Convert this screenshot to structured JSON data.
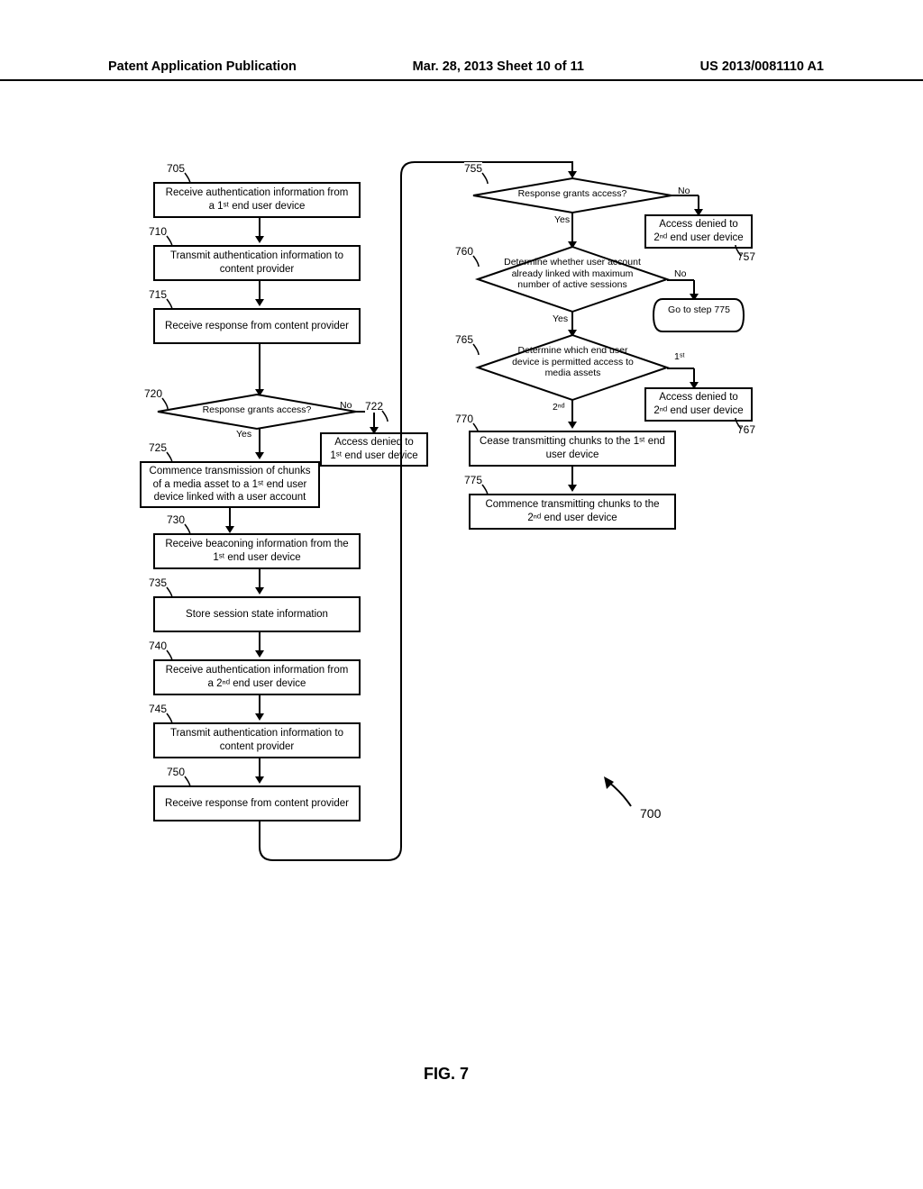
{
  "header": {
    "left": "Patent Application Publication",
    "center": "Mar. 28, 2013  Sheet 10 of 11",
    "right": "US 2013/0081110 A1"
  },
  "figure": {
    "label": "FIG. 7",
    "ref": "700"
  },
  "boxes": {
    "b705": "Receive authentication information from a 1ˢᵗ end user device",
    "b710": "Transmit authentication information to content provider",
    "b715": "Receive response from content provider",
    "b722": "Access denied to 1ˢᵗ end user device",
    "b725": "Commence transmission of chunks of a media asset to a 1ˢᵗ end user device linked with a user account",
    "b730": "Receive beaconing information from the 1ˢᵗ end user device",
    "b735": "Store session state information",
    "b740": "Receive authentication information from a 2ⁿᵈ end user device",
    "b745": "Transmit authentication information to content provider",
    "b750": "Receive response from content provider",
    "b757": "Access denied to 2ⁿᵈ end user device",
    "b767": "Access denied to 2ⁿᵈ end user device",
    "b770": "Cease transmitting chunks to the 1ˢᵗ end user device",
    "b775": "Commence transmitting chunks to the 2ⁿᵈ end user device"
  },
  "diamonds": {
    "d720": "Response grants access?",
    "d755": "Response grants access?",
    "d760": "Determine whether user account already linked with maximum number of active sessions",
    "d765": "Determine which end user device is permitted access to media assets"
  },
  "refs": {
    "r705": "705",
    "r710": "710",
    "r715": "715",
    "r720": "720",
    "r722": "722",
    "r725": "725",
    "r730": "730",
    "r735": "735",
    "r740": "740",
    "r745": "745",
    "r750": "750",
    "r755": "755",
    "r757": "757",
    "r760": "760",
    "r765": "765",
    "r767": "767",
    "r770": "770",
    "r775": "775"
  },
  "edges": {
    "yes": "Yes",
    "no": "No",
    "first": "1ˢᵗ",
    "second": "2ⁿᵈ",
    "goto775": "Go to step 775"
  },
  "styling": {
    "stroke": "#000000",
    "stroke_width": 2,
    "background": "#ffffff",
    "font_family": "Arial",
    "box_font_size": 11.5,
    "label_font_size": 12,
    "diamond_font_size": 10.5
  }
}
